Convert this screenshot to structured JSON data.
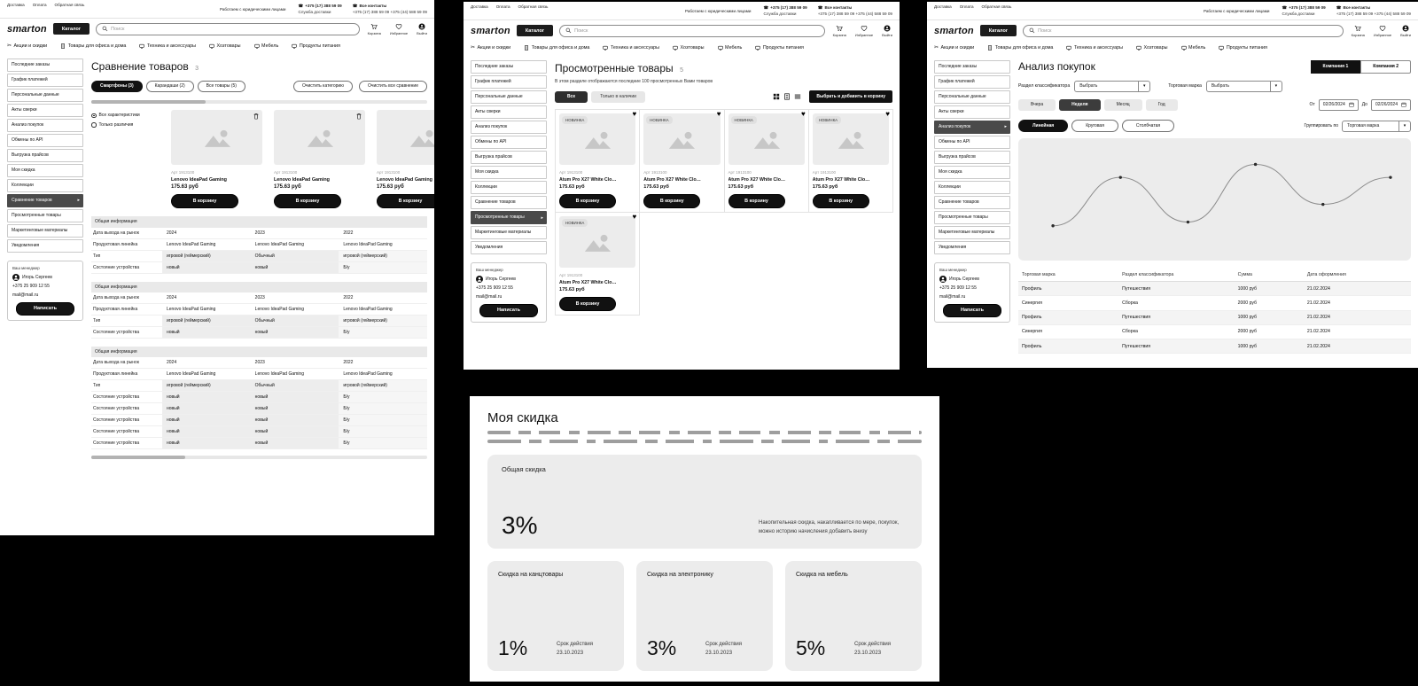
{
  "header": {
    "top_links": [
      "Доставка",
      "Оплата",
      "Обратная связь"
    ],
    "legal_note": "Работаем с юридическими лицами",
    "delivery_phone": "+375 (17) 388 59 09",
    "delivery_label": "Служба доставки",
    "contacts_label": "Все контакты",
    "contacts_phones": "+375 (17) 388 59 09  +375 (44) 588 59 09",
    "logo": "smarton",
    "catalog_button": "Каталог",
    "search_placeholder": "Поиск",
    "action_labels": [
      "Корзина",
      "Избранное",
      "Выйти"
    ],
    "nav_items": [
      "Акции и скидки",
      "Товары для офиса и дома",
      "Техника и аксессуары",
      "Хозтовары",
      "Мебель",
      "Продукты питания"
    ]
  },
  "sidebar": {
    "items": [
      "Последние заказы",
      "График платежей",
      "Персональные данные",
      "Акты сверки",
      "Анализ покупок",
      "Обмены по API",
      "Выгрузка прайсов",
      "Моя скидка",
      "Коллекции",
      "Сравнение товаров",
      "Просмотренные товары",
      "Маркетинговые материалы",
      "Уведомления"
    ],
    "manager": {
      "title": "Ваш менеджер",
      "name": "Игорь Сергеев",
      "phone": "+375 25 909 12 55",
      "email": "mail@mail.ru",
      "write_button": "Написать"
    }
  },
  "comparison": {
    "sidebar_active": 9,
    "title": "Сравнение товаров",
    "count": "3",
    "category_tabs": [
      {
        "label": "Смартфоны (3)",
        "active": true
      },
      {
        "label": "Карандаши (2)",
        "active": false
      },
      {
        "label": "Все товары (5)",
        "active": false
      }
    ],
    "clear_category_button": "Очистить категорию",
    "clear_all_button": "Очистить все сравнение",
    "radio_all": "Все характеристики",
    "radio_diff": "Только различия",
    "products": [
      {
        "art": "Арт 1913100",
        "name": "Lenovo IdeaPad Gaming",
        "price": "175.63 руб",
        "cart_button": "В корзину"
      },
      {
        "art": "Арт 1913100",
        "name": "Lenovo IdeaPad Gaming",
        "price": "175.63 руб",
        "cart_button": "В корзину"
      },
      {
        "art": "Арт 1913100",
        "name": "Lenovo IdeaPad Gaming",
        "price": "175.63 руб",
        "cart_button": "В корзину"
      }
    ],
    "sections": [
      {
        "header": "Общая информация",
        "rows": [
          {
            "label": "Дата выхода на рынок",
            "values": [
              "2024",
              "2023",
              "2022"
            ],
            "shade": false
          },
          {
            "label": "Продуктовая линейка",
            "values": [
              "Lenovo IdeaPad Gaming",
              "Lenovo IdeaPad Gaming",
              "Lenovo IdeaPad Gaming"
            ],
            "shade": false
          },
          {
            "label": "Тип",
            "values": [
              "игровой (геймерский)",
              "Обычный",
              "игровой (геймерский)"
            ],
            "shade": true
          },
          {
            "label": "Состояние устройства",
            "values": [
              "новый",
              "новый",
              "Б/у"
            ],
            "shade": true
          }
        ]
      },
      {
        "header": "Общая информация",
        "rows": [
          {
            "label": "Дата выхода на рынок",
            "values": [
              "2024",
              "2023",
              "2022"
            ],
            "shade": false
          },
          {
            "label": "Продуктовая линейка",
            "values": [
              "Lenovo IdeaPad Gaming",
              "Lenovo IdeaPad Gaming",
              "Lenovo IdeaPad Gaming"
            ],
            "shade": false
          },
          {
            "label": "Тип",
            "values": [
              "игровой (геймерский)",
              "Обычный",
              "игровой (геймерский)"
            ],
            "shade": true
          },
          {
            "label": "Состояние устройства",
            "values": [
              "новый",
              "новый",
              "Б/у"
            ],
            "shade": true
          }
        ]
      },
      {
        "header": "Общая информация",
        "rows": [
          {
            "label": "Дата выхода на рынок",
            "values": [
              "2024",
              "2023",
              "2022"
            ],
            "shade": false
          },
          {
            "label": "Продуктовая линейка",
            "values": [
              "Lenovo IdeaPad Gaming",
              "Lenovo IdeaPad Gaming",
              "Lenovo IdeaPad Gaming"
            ],
            "shade": false
          },
          {
            "label": "Тип",
            "values": [
              "игровой (геймерский)",
              "Обычный",
              "игровой (геймерский)"
            ],
            "shade": true
          },
          {
            "label": "Состояние устройства",
            "values": [
              "новый",
              "новый",
              "Б/у"
            ],
            "shade": true
          },
          {
            "label": "Состояние устройства",
            "values": [
              "новый",
              "новый",
              "Б/у"
            ],
            "shade": true
          },
          {
            "label": "Состояние устройства",
            "values": [
              "новый",
              "новый",
              "Б/у"
            ],
            "shade": true
          },
          {
            "label": "Состояние устройства",
            "values": [
              "новый",
              "новый",
              "Б/у"
            ],
            "shade": true
          },
          {
            "label": "Состояние устройства",
            "values": [
              "новый",
              "новый",
              "Б/у"
            ],
            "shade": true
          }
        ]
      }
    ]
  },
  "viewed": {
    "sidebar_active": 10,
    "title": "Просмотренные товары",
    "count": "5",
    "subtitle": "В этом разделе отображаются последние 100 просмотренных Вами товаров",
    "filter_all": "Все",
    "filter_stock": "Только в наличии",
    "add_to_cart_button": "Выбрать и добавить в корзину",
    "products": [
      {
        "badge": "НОВИНКА",
        "art": "Арт 1913100",
        "name": "Atum Pro X27 White Clo…",
        "price": "175.63 руб",
        "cart_button": "В корзину"
      },
      {
        "badge": "НОВИНКА",
        "art": "Арт 1913100",
        "name": "Atum Pro X27 White Clo…",
        "price": "175.63 руб",
        "cart_button": "В корзину"
      },
      {
        "badge": "НОВИНКА",
        "art": "Арт 1913100",
        "name": "Atum Pro X27 White Clo…",
        "price": "175.63 руб",
        "cart_button": "В корзину"
      },
      {
        "badge": "НОВИНКА",
        "art": "Арт 1913100",
        "name": "Atum Pro X27 White Clo…",
        "price": "175.63 руб",
        "cart_button": "В корзину"
      },
      {
        "badge": "НОВИНКА",
        "art": "Арт 1913100",
        "name": "Atum Pro X27 White Clo…",
        "price": "175.63 руб",
        "cart_button": "В корзину"
      }
    ]
  },
  "analysis": {
    "sidebar_active": 4,
    "title": "Анализ покупок",
    "company_tabs": [
      {
        "label": "Компания 1",
        "active": true
      },
      {
        "label": "Компания 2",
        "active": false
      }
    ],
    "classifier_label": "Раздел классификатора",
    "classifier_value": "Выбрать",
    "brand_label": "Торговая марка",
    "brand_value": "Выбрать",
    "period_tabs": [
      {
        "label": "Вчера",
        "active": false
      },
      {
        "label": "Неделя",
        "active": true
      },
      {
        "label": "Месяц",
        "active": false
      },
      {
        "label": "Год",
        "active": false
      }
    ],
    "date_from_label": "От",
    "date_from": "02/26/2024",
    "date_to_label": "До",
    "date_to": "02/26/2024",
    "chart_type_tabs": [
      {
        "label": "Линейная",
        "active": true
      },
      {
        "label": "Круговая",
        "active": false
      },
      {
        "label": "Столбчатая",
        "active": false
      }
    ],
    "group_by_label": "Группировать по",
    "group_by_value": "Торговая марка",
    "table": {
      "headers": [
        "Торговая марка",
        "Раздел классификатора",
        "Сумма",
        "Дата оформления"
      ],
      "rows": [
        [
          "Профиль",
          "Путешествия",
          "1000 руб",
          "21.02.2024"
        ],
        [
          "Синергия",
          "Сборка",
          "2000 руб",
          "21.02.2024"
        ],
        [
          "Профиль",
          "Путешествия",
          "1000 руб",
          "21.02.2024"
        ],
        [
          "Синергия",
          "Сборка",
          "2000 руб",
          "21.02.2024"
        ],
        [
          "Профиль",
          "Путешествия",
          "1000 руб",
          "21.02.2024"
        ]
      ]
    }
  },
  "chart_data": {
    "type": "line",
    "x": [
      1,
      2,
      3,
      4,
      5,
      6
    ],
    "values": [
      25,
      77,
      29,
      91,
      48,
      77
    ],
    "title": "",
    "xlabel": "",
    "ylabel": "",
    "legend": [],
    "notes": "smooth purchases trend line with 6 dot markers; no axes, gridlines or tick labels shown",
    "line_color": "#8c8c8c",
    "point_color": "#2b2b2b",
    "background": "#ececec"
  },
  "discount": {
    "title": "Моя скидка",
    "total_card": {
      "label": "Общая скидка",
      "value": "3%",
      "note": "Накопительная скидка, накапливается по мере, покупок, можно историю начисления добавить внизу"
    },
    "category_cards": [
      {
        "label": "Скидка на канцтовары",
        "value": "1%",
        "term_label": "Срок действия",
        "term": "23.10.2023"
      },
      {
        "label": "Скидка на электронику",
        "value": "3%",
        "term_label": "Срок действия",
        "term": "23.10.2023"
      },
      {
        "label": "Скидка на мебель",
        "value": "5%",
        "term_label": "Срок действия",
        "term": "23.10.2023"
      }
    ]
  }
}
